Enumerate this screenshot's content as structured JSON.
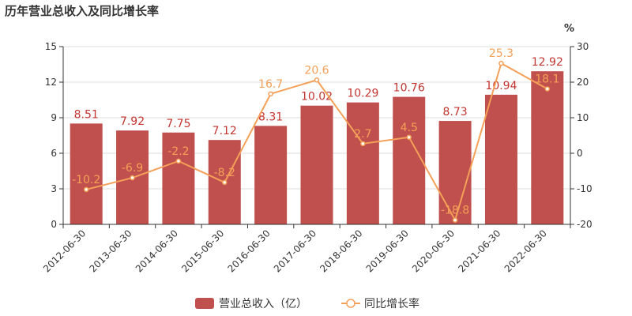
{
  "colors": {
    "bar": "#c0504d",
    "bar_label": "#c23531",
    "line": "#f5a058",
    "axis": "#333333",
    "grid": "#dddddd"
  },
  "chart_data": {
    "type": "bar",
    "title": "历年营业总收入及同比增长率",
    "categories": [
      "2012-06-30",
      "2013-06-30",
      "2014-06-30",
      "2015-06-30",
      "2016-06-30",
      "2017-06-30",
      "2018-06-30",
      "2019-06-30",
      "2020-06-30",
      "2021-06-30",
      "2022-06-30"
    ],
    "series": [
      {
        "name": "营业总收入（亿）",
        "kind": "bar",
        "axis": "left",
        "values": [
          8.51,
          7.92,
          7.75,
          7.12,
          8.31,
          10.02,
          10.29,
          10.76,
          8.73,
          10.94,
          12.92
        ],
        "labels": [
          "8.51",
          "7.92",
          "7.75",
          "7.12",
          "8.31",
          "10.02",
          "10.29",
          "10.76",
          "8.73",
          "10.94",
          "12.92"
        ]
      },
      {
        "name": "同比增长率",
        "kind": "line",
        "axis": "right",
        "values": [
          -10.2,
          -6.9,
          -2.2,
          -8.2,
          16.7,
          20.6,
          2.7,
          4.5,
          -18.8,
          25.3,
          18.1
        ],
        "labels": [
          "-10.2",
          "-6.9",
          "-2.2",
          "-8.2",
          "16.7",
          "20.6",
          "2.7",
          "4.5",
          "-18.8",
          "25.3",
          "18.1"
        ]
      }
    ],
    "y_left": {
      "ylim": [
        0,
        15
      ],
      "ticks": [
        "0",
        "3",
        "6",
        "9",
        "12",
        "15"
      ]
    },
    "y_right": {
      "unit": "%",
      "ylim": [
        -20,
        30
      ],
      "ticks": [
        "-20",
        "-10",
        "0",
        "10",
        "20",
        "30"
      ]
    },
    "grid": true,
    "legend_position": "bottom-center"
  }
}
